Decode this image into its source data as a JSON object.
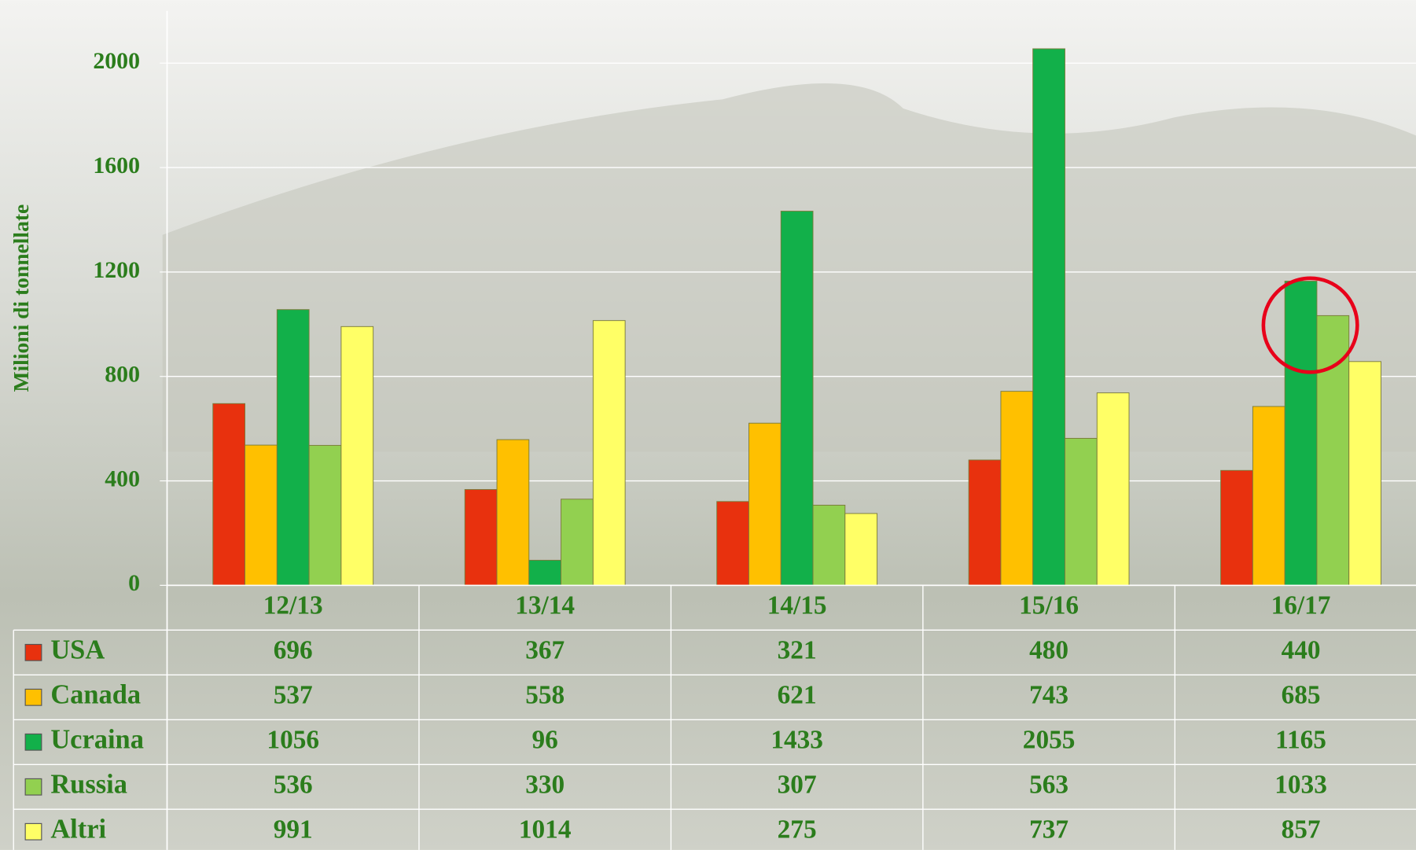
{
  "chart_data": {
    "type": "bar",
    "y_label": "Milioni di tonnellate",
    "categories": [
      "12/13",
      "13/14",
      "14/15",
      "15/16",
      "16/17"
    ],
    "series": [
      {
        "name": "USA",
        "color": "#e8310e",
        "values": [
          696,
          367,
          321,
          480,
          440
        ]
      },
      {
        "name": "Canada",
        "color": "#ffc000",
        "values": [
          537,
          558,
          621,
          743,
          685
        ]
      },
      {
        "name": "Ucraina",
        "color": "#12b04a",
        "values": [
          1056,
          96,
          1433,
          2055,
          1165
        ]
      },
      {
        "name": "Russia",
        "color": "#92d050",
        "values": [
          536,
          330,
          307,
          563,
          1033
        ]
      },
      {
        "name": "Altri",
        "color": "#ffff66",
        "values": [
          991,
          1014,
          275,
          737,
          857
        ]
      }
    ],
    "ylim": [
      0,
      2200
    ],
    "yticks": [
      0,
      400,
      800,
      1200,
      1600,
      2000
    ],
    "grid": true
  }
}
